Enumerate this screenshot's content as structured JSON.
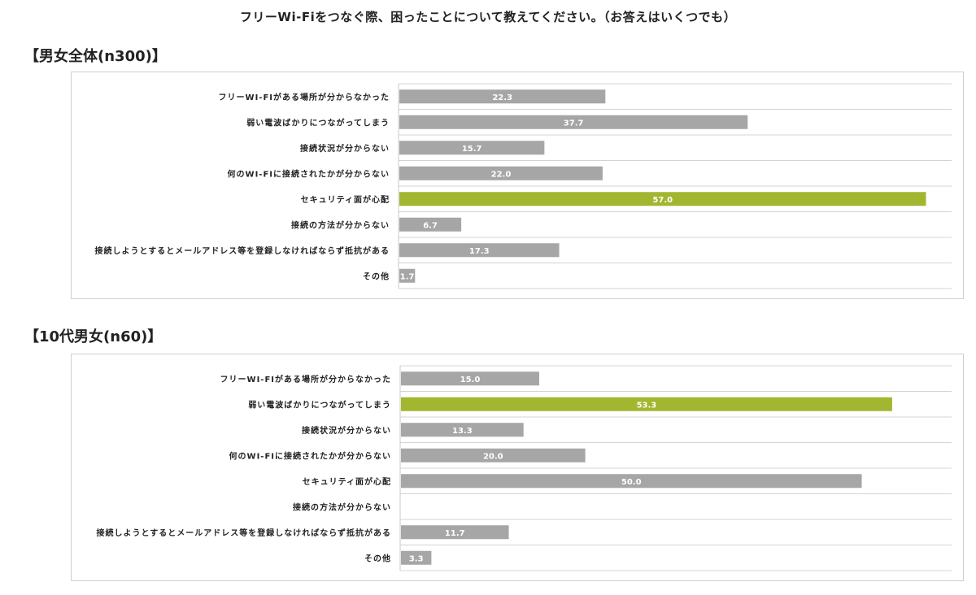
{
  "title": "フリーWi-Fiをつなぐ際、困ったことについて教えてください。（お答えはいくつでも）",
  "colors": {
    "default_bar": "#a6a6a6",
    "highlight_bar": "#a2b630",
    "label_text": "#ffffff"
  },
  "chart_data": [
    {
      "type": "bar",
      "orientation": "horizontal",
      "title": "【男女全体(n300)】",
      "categories": [
        "フリーWI-FIがある場所が分からなかった",
        "弱い電波ばかりにつながってしまう",
        "接続状況が分からない",
        "何のWI-FIに接続されたかが分からない",
        "セキュリティ面が心配",
        "接続の方法が分からない",
        "接続しようとするとメールアドレス等を登録しなければならず抵抗がある",
        "その他"
      ],
      "values": [
        22.3,
        37.7,
        15.7,
        22.0,
        57.0,
        6.7,
        17.3,
        1.7
      ],
      "value_labels": [
        "22.3",
        "37.7",
        "15.7",
        "22.0",
        "57.0",
        "6.7",
        "17.3",
        "1.7"
      ],
      "highlight_index": 4,
      "xlim": [
        0,
        60
      ],
      "grid": true
    },
    {
      "type": "bar",
      "orientation": "horizontal",
      "title": "【10代男女(n60)】",
      "categories": [
        "フリーWI-FIがある場所が分からなかった",
        "弱い電波ばかりにつながってしまう",
        "接続状況が分からない",
        "何のWI-FIに接続されたかが分からない",
        "セキュリティ面が心配",
        "接続の方法が分からない",
        "接続しようとするとメールアドレス等を登録しなければならず抵抗がある",
        "その他"
      ],
      "values": [
        15.0,
        53.3,
        13.3,
        20.0,
        50.0,
        0,
        11.7,
        3.3
      ],
      "value_labels": [
        "15.0",
        "53.3",
        "13.3",
        "20.0",
        "50.0",
        "",
        "11.7",
        "3.3"
      ],
      "highlight_index": 1,
      "xlim": [
        0,
        60
      ],
      "grid": true
    }
  ]
}
